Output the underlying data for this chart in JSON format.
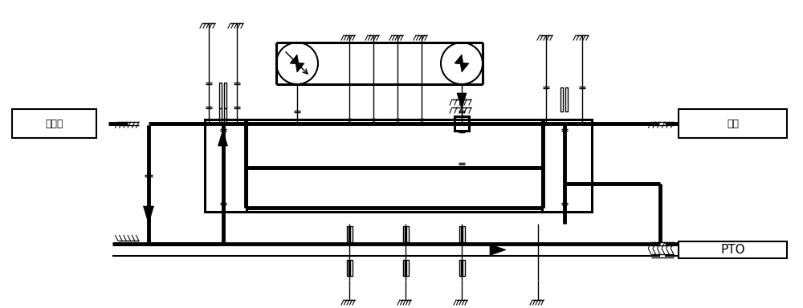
{
  "bg_color": "#ffffff",
  "lc": "#000000",
  "fig_width": 10.0,
  "fig_height": 3.84,
  "dpi": 100,
  "label_fadongji": "发动机",
  "label_chejiao": "车桥",
  "label_pto": "PTO",
  "xlim": [
    0,
    100
  ],
  "ylim": [
    0,
    38.4
  ]
}
